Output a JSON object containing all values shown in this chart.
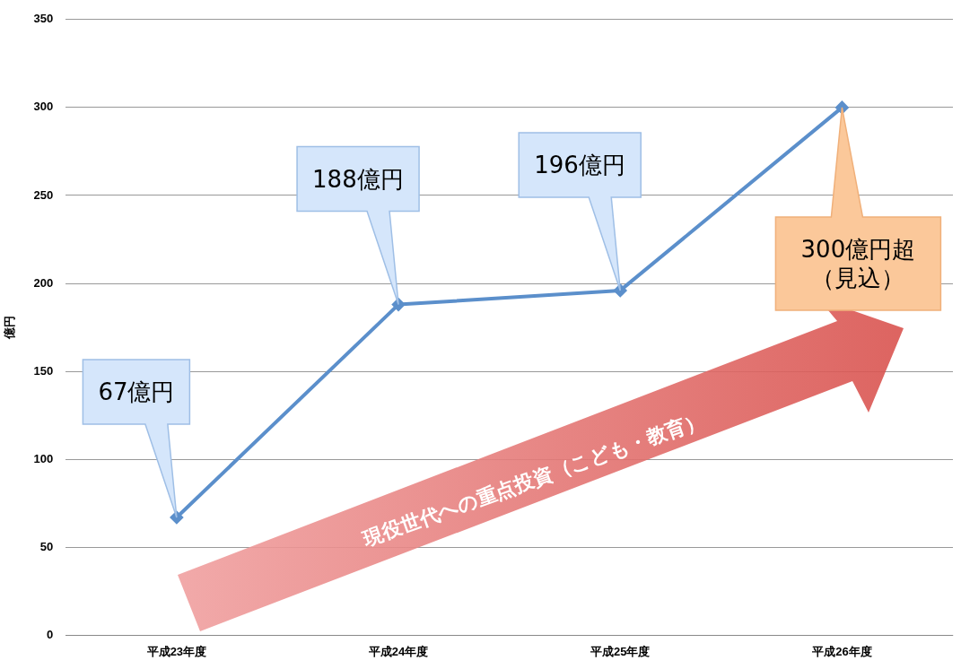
{
  "chart_data": {
    "type": "line",
    "ylabel": "億円",
    "categories": [
      "平成23年度",
      "平成24年度",
      "平成25年度",
      "平成26年度"
    ],
    "series": [
      {
        "color": "#5b8fcb",
        "values": [
          67,
          188,
          196,
          300
        ]
      }
    ],
    "value_labels": [
      "67億円",
      "188億円",
      "196億円",
      "300億円超（見込）"
    ],
    "ylim": [
      0,
      350
    ],
    "yticks": [
      0,
      50,
      100,
      150,
      200,
      250,
      300,
      350
    ],
    "grid": "y",
    "legend": false,
    "marker": "diamond",
    "line_style": "solid",
    "annotations": [
      "現役世代への重点投資（こども・教育）"
    ]
  }
}
